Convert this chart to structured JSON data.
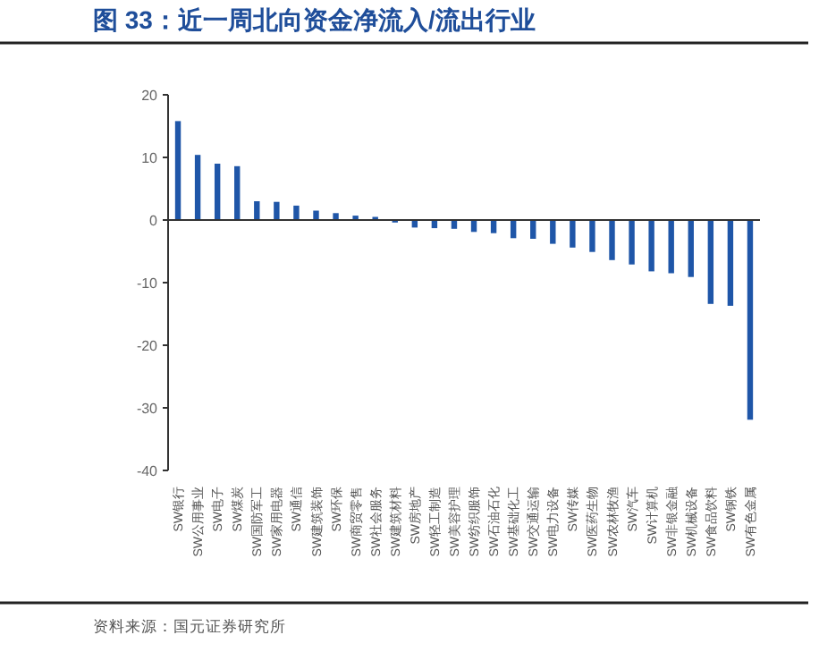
{
  "chart_data": {
    "type": "bar",
    "title": "图 33：近一周北向资金净流入/流出行业",
    "categories": [
      "SW银行",
      "SW公用事业",
      "SW电子",
      "SW煤炭",
      "SW国防军工",
      "SW家用电器",
      "SW通信",
      "SW建筑装饰",
      "SW环保",
      "SW商贸零售",
      "SW社会服务",
      "SW建筑材料",
      "SW房地产",
      "SW轻工制造",
      "SW美容护理",
      "SW纺织服饰",
      "SW石油石化",
      "SW基础化工",
      "SW交通运输",
      "SW电力设备",
      "SW传媒",
      "SW医药生物",
      "SW农林牧渔",
      "SW汽车",
      "SW计算机",
      "SW非银金融",
      "SW机械设备",
      "SW食品饮料",
      "SW钢铁",
      "SW有色金属"
    ],
    "values": [
      15.8,
      10.4,
      9.0,
      8.6,
      3.0,
      2.9,
      2.3,
      1.5,
      1.1,
      0.7,
      0.5,
      -0.4,
      -1.2,
      -1.3,
      -1.4,
      -1.9,
      -2.1,
      -2.9,
      -3.0,
      -3.8,
      -4.4,
      -5.1,
      -6.4,
      -7.1,
      -8.2,
      -8.5,
      -9.1,
      -13.4,
      -13.7,
      -31.9
    ],
    "color": "#1f56a8",
    "ylim": [
      -40,
      20
    ],
    "yticks": [
      -40,
      -30,
      -20,
      -10,
      0,
      10,
      20
    ],
    "annotations": [
      "资料来源：国元证券研究所"
    ]
  }
}
